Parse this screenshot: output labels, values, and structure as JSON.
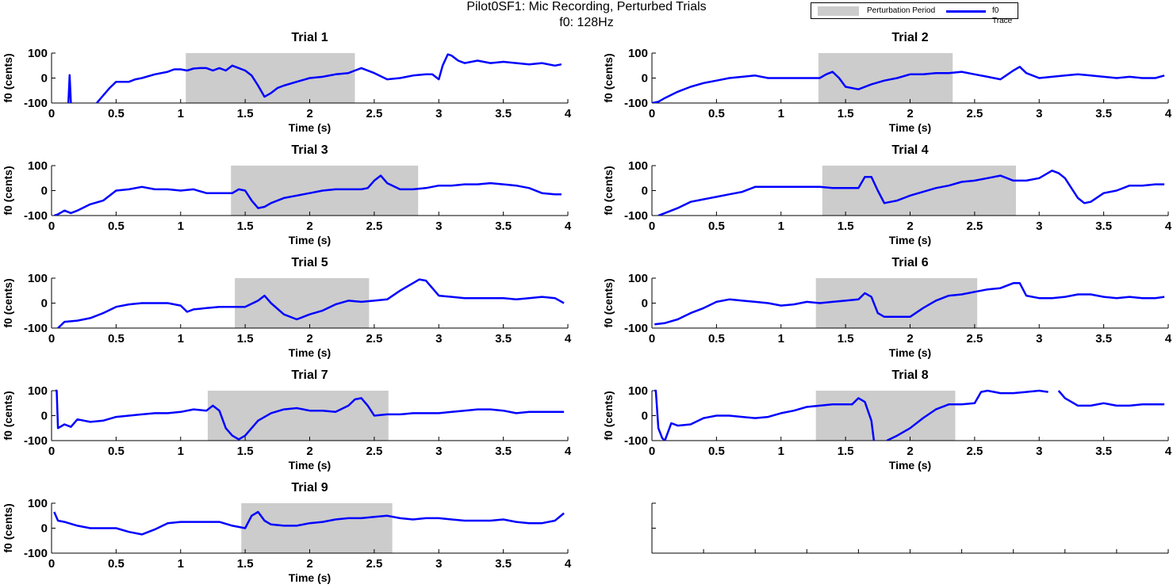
{
  "figure": {
    "title_line1": "Pilot0SF1: Mic Recording, Perturbed Trials",
    "title_line2": "f0: 128Hz"
  },
  "legend": {
    "items": [
      {
        "label": "Perturbation Period",
        "color": "#cccccc",
        "kind": "patch"
      },
      {
        "label": "f0 Trace",
        "color": "#0000ff",
        "kind": "line"
      }
    ]
  },
  "chart_data": [
    {
      "type": "line",
      "title": "Trial 1",
      "xlabel": "Time (s)",
      "ylabel": "f0 (cents)",
      "xlim": [
        0,
        4
      ],
      "ylim": [
        -100,
        100
      ],
      "xticks": [
        "0",
        "0.5",
        "1",
        "1.5",
        "2",
        "2.5",
        "3",
        "3.5",
        "4"
      ],
      "yticks": [
        "-100",
        "0",
        "100"
      ],
      "perturbation": [
        1.04,
        2.35
      ],
      "x": [
        0.13,
        0.14,
        0.15,
        0.2,
        0.26,
        0.3,
        0.35,
        0.4,
        0.45,
        0.5,
        0.6,
        0.65,
        0.7,
        0.8,
        0.9,
        0.95,
        1.0,
        1.05,
        1.1,
        1.15,
        1.2,
        1.25,
        1.3,
        1.35,
        1.4,
        1.45,
        1.5,
        1.55,
        1.6,
        1.65,
        1.7,
        1.75,
        1.8,
        1.9,
        2.0,
        2.1,
        2.2,
        2.3,
        2.35,
        2.4,
        2.5,
        2.6,
        2.7,
        2.8,
        2.9,
        2.95,
        3.0,
        3.03,
        3.07,
        3.1,
        3.15,
        3.2,
        3.3,
        3.4,
        3.5,
        3.6,
        3.7,
        3.8,
        3.9,
        3.95
      ],
      "values": [
        -100,
        12,
        -100,
        null,
        -100,
        null,
        -100,
        -70,
        -40,
        -15,
        -15,
        -5,
        0,
        15,
        25,
        35,
        35,
        30,
        38,
        40,
        40,
        30,
        40,
        30,
        50,
        40,
        30,
        10,
        -30,
        -75,
        -60,
        -40,
        -30,
        -15,
        0,
        5,
        15,
        20,
        30,
        40,
        20,
        -5,
        0,
        10,
        15,
        15,
        -5,
        50,
        95,
        90,
        70,
        60,
        70,
        60,
        65,
        60,
        55,
        60,
        50,
        55
      ]
    },
    {
      "type": "line",
      "title": "Trial 2",
      "xlabel": "Time (s)",
      "ylabel": "f0 (cents)",
      "xlim": [
        0,
        4
      ],
      "ylim": [
        -100,
        100
      ],
      "xticks": [
        "0",
        "0.5",
        "1",
        "1.5",
        "2",
        "2.5",
        "3",
        "3.5",
        "4"
      ],
      "yticks": [
        "-100",
        "0",
        "100"
      ],
      "perturbation": [
        1.29,
        2.33
      ],
      "x": [
        0.0,
        0.05,
        0.1,
        0.2,
        0.3,
        0.4,
        0.5,
        0.6,
        0.7,
        0.8,
        0.9,
        1.0,
        1.1,
        1.2,
        1.3,
        1.35,
        1.4,
        1.45,
        1.5,
        1.6,
        1.7,
        1.8,
        1.9,
        2.0,
        2.1,
        2.2,
        2.3,
        2.4,
        2.5,
        2.6,
        2.7,
        2.8,
        2.85,
        2.9,
        3.0,
        3.1,
        3.2,
        3.3,
        3.4,
        3.5,
        3.6,
        3.7,
        3.8,
        3.9,
        3.97
      ],
      "values": [
        -100,
        -95,
        -80,
        -55,
        -35,
        -20,
        -10,
        0,
        5,
        10,
        0,
        0,
        0,
        0,
        0,
        15,
        25,
        0,
        -35,
        -45,
        -25,
        -10,
        0,
        15,
        15,
        20,
        20,
        25,
        15,
        5,
        -5,
        30,
        45,
        20,
        0,
        5,
        10,
        15,
        10,
        5,
        0,
        5,
        0,
        0,
        10
      ]
    },
    {
      "type": "line",
      "title": "Trial 3",
      "xlabel": "Time (s)",
      "ylabel": "f0 (cents)",
      "xlim": [
        0,
        4
      ],
      "ylim": [
        -100,
        100
      ],
      "xticks": [
        "0",
        "0.5",
        "1",
        "1.5",
        "2",
        "2.5",
        "3",
        "3.5",
        "4"
      ],
      "yticks": [
        "-100",
        "0",
        "100"
      ],
      "perturbation": [
        1.39,
        2.84
      ],
      "x": [
        0.02,
        0.05,
        0.1,
        0.15,
        0.2,
        0.3,
        0.4,
        0.5,
        0.6,
        0.7,
        0.8,
        0.9,
        1.0,
        1.1,
        1.2,
        1.3,
        1.4,
        1.45,
        1.5,
        1.55,
        1.6,
        1.65,
        1.7,
        1.8,
        1.9,
        2.0,
        2.1,
        2.2,
        2.3,
        2.4,
        2.45,
        2.5,
        2.55,
        2.6,
        2.7,
        2.8,
        2.9,
        3.0,
        3.1,
        3.2,
        3.3,
        3.4,
        3.5,
        3.6,
        3.7,
        3.8,
        3.9,
        3.95
      ],
      "values": [
        -100,
        -95,
        -80,
        -90,
        -80,
        -55,
        -40,
        0,
        5,
        15,
        5,
        5,
        0,
        5,
        -10,
        -10,
        -10,
        5,
        0,
        -40,
        -70,
        -65,
        -50,
        -30,
        -20,
        -10,
        0,
        5,
        5,
        5,
        10,
        40,
        60,
        30,
        5,
        5,
        10,
        20,
        20,
        25,
        25,
        30,
        25,
        20,
        10,
        -10,
        -15,
        -15
      ]
    },
    {
      "type": "line",
      "title": "Trial 4",
      "xlabel": "Time (s)",
      "ylabel": "f0 (cents)",
      "xlim": [
        0,
        4
      ],
      "ylim": [
        -100,
        100
      ],
      "xticks": [
        "0",
        "0.5",
        "1",
        "1.5",
        "2",
        "2.5",
        "3",
        "3.5",
        "4"
      ],
      "yticks": [
        "-100",
        "0",
        "100"
      ],
      "perturbation": [
        1.32,
        2.82
      ],
      "x": [
        0.05,
        0.1,
        0.2,
        0.3,
        0.4,
        0.5,
        0.6,
        0.7,
        0.8,
        0.9,
        1.0,
        1.1,
        1.2,
        1.3,
        1.4,
        1.5,
        1.6,
        1.65,
        1.7,
        1.75,
        1.8,
        1.85,
        1.9,
        2.0,
        2.1,
        2.2,
        2.3,
        2.4,
        2.5,
        2.6,
        2.7,
        2.8,
        2.9,
        3.0,
        3.1,
        3.15,
        3.2,
        3.3,
        3.35,
        3.4,
        3.5,
        3.6,
        3.7,
        3.8,
        3.9,
        3.97
      ],
      "values": [
        -100,
        -90,
        -70,
        -45,
        -35,
        -25,
        -15,
        -5,
        15,
        15,
        15,
        15,
        15,
        15,
        10,
        10,
        10,
        55,
        55,
        0,
        -50,
        -45,
        -40,
        -20,
        -5,
        10,
        20,
        35,
        40,
        50,
        60,
        40,
        40,
        50,
        80,
        70,
        50,
        -30,
        -50,
        -45,
        -10,
        0,
        20,
        20,
        25,
        25
      ]
    },
    {
      "type": "line",
      "title": "Trial 5",
      "xlabel": "Time (s)",
      "ylabel": "f0 (cents)",
      "xlim": [
        0,
        4
      ],
      "ylim": [
        -100,
        100
      ],
      "xticks": [
        "0",
        "0.5",
        "1",
        "1.5",
        "2",
        "2.5",
        "3",
        "3.5",
        "4"
      ],
      "yticks": [
        "-100",
        "0",
        "100"
      ],
      "perturbation": [
        1.42,
        2.46
      ],
      "x": [
        0.05,
        0.1,
        0.2,
        0.3,
        0.4,
        0.5,
        0.6,
        0.7,
        0.8,
        0.9,
        1.0,
        1.05,
        1.1,
        1.2,
        1.3,
        1.4,
        1.5,
        1.6,
        1.65,
        1.7,
        1.8,
        1.9,
        2.0,
        2.1,
        2.2,
        2.3,
        2.4,
        2.5,
        2.6,
        2.7,
        2.8,
        2.85,
        2.9,
        3.0,
        3.1,
        3.2,
        3.3,
        3.4,
        3.5,
        3.6,
        3.7,
        3.8,
        3.9,
        3.97
      ],
      "values": [
        -100,
        -75,
        -70,
        -60,
        -40,
        -15,
        -5,
        0,
        0,
        0,
        -10,
        -35,
        -25,
        -20,
        -15,
        -15,
        -15,
        10,
        30,
        0,
        -45,
        -65,
        -45,
        -30,
        -5,
        10,
        5,
        10,
        15,
        50,
        80,
        95,
        90,
        30,
        25,
        20,
        20,
        20,
        20,
        15,
        20,
        25,
        20,
        0
      ]
    },
    {
      "type": "line",
      "title": "Trial 6",
      "xlabel": "Time (s)",
      "ylabel": "f0 (cents)",
      "xlim": [
        0,
        4
      ],
      "ylim": [
        -100,
        100
      ],
      "xticks": [
        "0",
        "0.5",
        "1",
        "1.5",
        "2",
        "2.5",
        "3",
        "3.5",
        "4"
      ],
      "yticks": [
        "-100",
        "0",
        "100"
      ],
      "perturbation": [
        1.27,
        2.52
      ],
      "x": [
        0.02,
        0.1,
        0.2,
        0.3,
        0.4,
        0.5,
        0.6,
        0.7,
        0.8,
        0.9,
        1.0,
        1.1,
        1.2,
        1.3,
        1.4,
        1.5,
        1.6,
        1.65,
        1.7,
        1.75,
        1.8,
        1.9,
        2.0,
        2.1,
        2.2,
        2.3,
        2.4,
        2.5,
        2.6,
        2.7,
        2.8,
        2.85,
        2.9,
        3.0,
        3.1,
        3.2,
        3.3,
        3.4,
        3.5,
        3.6,
        3.7,
        3.8,
        3.9,
        3.97
      ],
      "values": [
        -85,
        -80,
        -65,
        -40,
        -20,
        5,
        15,
        10,
        5,
        0,
        -10,
        -5,
        5,
        0,
        5,
        10,
        15,
        40,
        25,
        -40,
        -55,
        -55,
        -55,
        -20,
        10,
        30,
        35,
        45,
        55,
        60,
        80,
        80,
        30,
        20,
        20,
        25,
        35,
        35,
        25,
        20,
        25,
        20,
        20,
        25
      ]
    },
    {
      "type": "line",
      "title": "Trial 7",
      "xlabel": "Time (s)",
      "ylabel": "f0 (cents)",
      "xlim": [
        0,
        4
      ],
      "ylim": [
        -100,
        100
      ],
      "xticks": [
        "0",
        "0.5",
        "1",
        "1.5",
        "2",
        "2.5",
        "3",
        "3.5",
        "4"
      ],
      "yticks": [
        "-100",
        "0",
        "100"
      ],
      "perturbation": [
        1.21,
        2.61
      ],
      "x": [
        0.03,
        0.04,
        0.05,
        0.1,
        0.15,
        0.2,
        0.3,
        0.4,
        0.5,
        0.6,
        0.7,
        0.8,
        0.9,
        1.0,
        1.1,
        1.2,
        1.25,
        1.3,
        1.35,
        1.4,
        1.45,
        1.5,
        1.6,
        1.7,
        1.8,
        1.9,
        2.0,
        2.1,
        2.2,
        2.3,
        2.35,
        2.4,
        2.45,
        2.5,
        2.6,
        2.7,
        2.8,
        2.9,
        3.0,
        3.1,
        3.2,
        3.3,
        3.4,
        3.5,
        3.6,
        3.7,
        3.8,
        3.9,
        3.97
      ],
      "values": [
        100,
        100,
        -50,
        -35,
        -45,
        -15,
        -25,
        -20,
        -5,
        0,
        5,
        10,
        10,
        15,
        25,
        20,
        40,
        20,
        -50,
        -80,
        -95,
        -80,
        -20,
        10,
        25,
        30,
        20,
        20,
        15,
        40,
        65,
        70,
        40,
        0,
        5,
        5,
        10,
        10,
        10,
        15,
        20,
        25,
        25,
        20,
        10,
        15,
        15,
        15,
        15
      ]
    },
    {
      "type": "line",
      "title": "Trial 8",
      "xlabel": "Time (s)",
      "ylabel": "f0 (cents)",
      "xlim": [
        0,
        4
      ],
      "ylim": [
        -100,
        100
      ],
      "xticks": [
        "0",
        "0.5",
        "1",
        "1.5",
        "2",
        "2.5",
        "3",
        "3.5",
        "4"
      ],
      "yticks": [
        "-100",
        "0",
        "100"
      ],
      "perturbation": [
        1.27,
        2.35
      ],
      "x": [
        0.02,
        0.03,
        0.05,
        0.08,
        0.1,
        0.15,
        0.2,
        0.3,
        0.4,
        0.5,
        0.6,
        0.7,
        0.8,
        0.9,
        1.0,
        1.1,
        1.2,
        1.3,
        1.4,
        1.5,
        1.55,
        1.6,
        1.65,
        1.7,
        1.72,
        1.75,
        1.8,
        1.82,
        1.9,
        2.0,
        2.1,
        2.2,
        2.3,
        2.4,
        2.5,
        2.55,
        2.6,
        2.7,
        2.8,
        2.9,
        3.0,
        3.07,
        3.12,
        3.15,
        3.2,
        3.3,
        3.4,
        3.5,
        3.6,
        3.7,
        3.8,
        3.9,
        3.97
      ],
      "values": [
        100,
        100,
        -50,
        -90,
        -100,
        -30,
        -40,
        -35,
        -10,
        0,
        0,
        -5,
        -10,
        -5,
        10,
        20,
        35,
        40,
        45,
        45,
        45,
        70,
        55,
        -20,
        -100,
        null,
        null,
        -100,
        -80,
        -50,
        -10,
        25,
        45,
        45,
        50,
        95,
        100,
        90,
        90,
        95,
        100,
        95,
        null,
        100,
        70,
        40,
        40,
        50,
        40,
        40,
        45,
        45,
        45
      ]
    },
    {
      "type": "line",
      "title": "Trial 9",
      "xlabel": "Time (s)",
      "ylabel": "f0 (cents)",
      "xlim": [
        0,
        4
      ],
      "ylim": [
        -100,
        100
      ],
      "xticks": [
        "0",
        "0.5",
        "1",
        "1.5",
        "2",
        "2.5",
        "3",
        "3.5",
        "4"
      ],
      "yticks": [
        "-100",
        "0",
        "100"
      ],
      "perturbation": [
        1.47,
        2.64
      ],
      "x": [
        0.02,
        0.05,
        0.1,
        0.2,
        0.3,
        0.4,
        0.5,
        0.6,
        0.7,
        0.8,
        0.9,
        1.0,
        1.1,
        1.2,
        1.3,
        1.4,
        1.5,
        1.55,
        1.6,
        1.65,
        1.7,
        1.8,
        1.9,
        2.0,
        2.1,
        2.2,
        2.3,
        2.4,
        2.5,
        2.6,
        2.7,
        2.8,
        2.9,
        3.0,
        3.1,
        3.2,
        3.3,
        3.4,
        3.5,
        3.6,
        3.7,
        3.8,
        3.9,
        3.97
      ],
      "values": [
        65,
        30,
        25,
        10,
        0,
        0,
        0,
        -15,
        -25,
        -5,
        20,
        25,
        25,
        25,
        25,
        10,
        0,
        50,
        65,
        30,
        15,
        10,
        10,
        20,
        25,
        35,
        40,
        40,
        45,
        50,
        40,
        35,
        40,
        40,
        35,
        30,
        30,
        30,
        35,
        25,
        20,
        20,
        30,
        60
      ]
    },
    {
      "type": "line",
      "title": "",
      "xlabel": "",
      "ylabel": "",
      "xlim": [
        0,
        4
      ],
      "ylim": [
        -100,
        100
      ],
      "xticks": [],
      "yticks": [],
      "empty": true,
      "x": [],
      "values": []
    }
  ]
}
